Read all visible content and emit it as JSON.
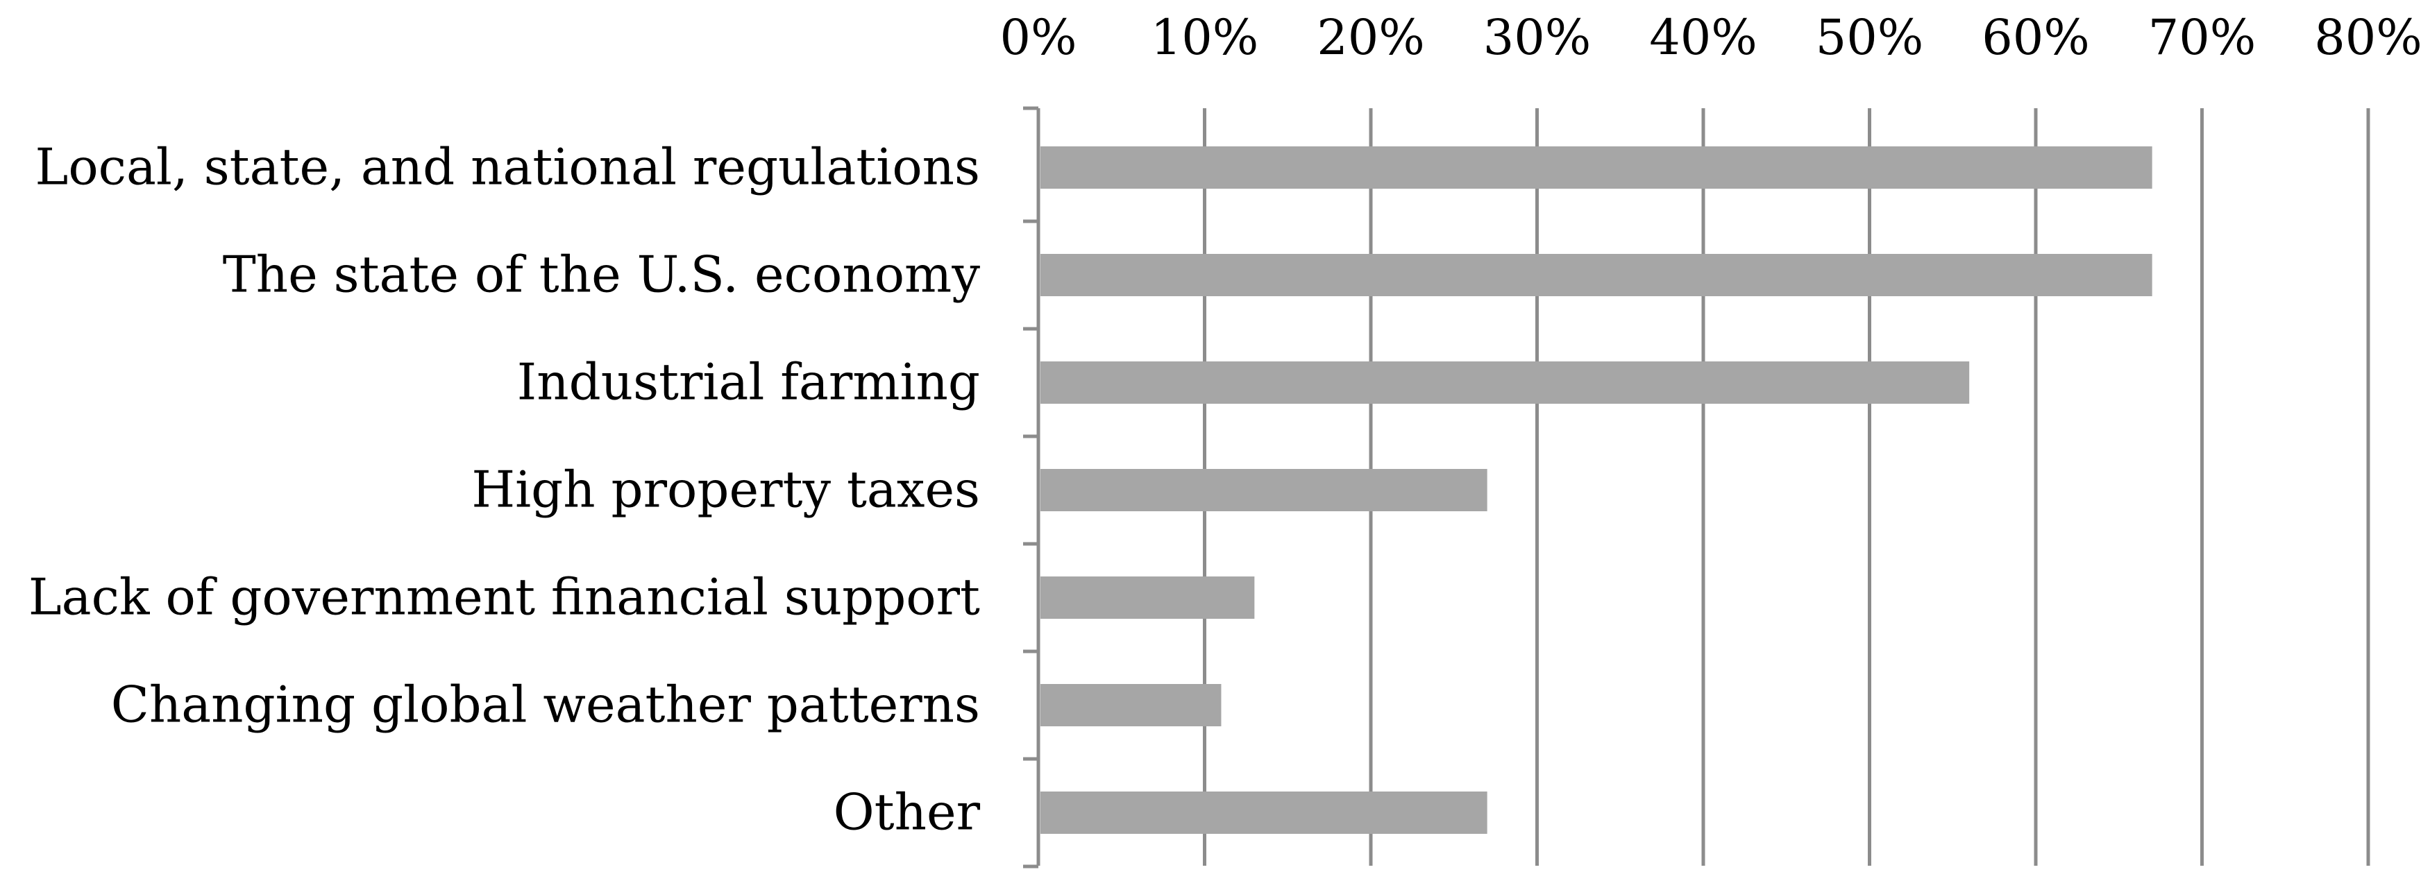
{
  "chart_data": {
    "type": "bar",
    "orientation": "horizontal",
    "title": "",
    "xlabel": "",
    "ylabel": "",
    "categories": [
      "Local, state, and national regulations",
      "The state of the U.S. economy",
      "Industrial farming",
      "High property taxes",
      "Lack of government financial support",
      "Changing global weather patterns",
      "Other"
    ],
    "values": [
      67,
      67,
      56,
      27,
      13,
      11,
      27
    ],
    "value_unit": "%",
    "xlim": [
      0,
      80
    ],
    "x_ticks": [
      0,
      10,
      20,
      30,
      40,
      50,
      60,
      70,
      80
    ],
    "x_tick_labels": [
      "0%",
      "10%",
      "20%",
      "30%",
      "40%",
      "50%",
      "60%",
      "70%",
      "80%"
    ],
    "x_axis_position": "top",
    "grid": "vertical",
    "legend": "none",
    "colors": {
      "bar": "#a6a6a6",
      "grid": "#8c8c8c",
      "text": "#000000"
    }
  }
}
